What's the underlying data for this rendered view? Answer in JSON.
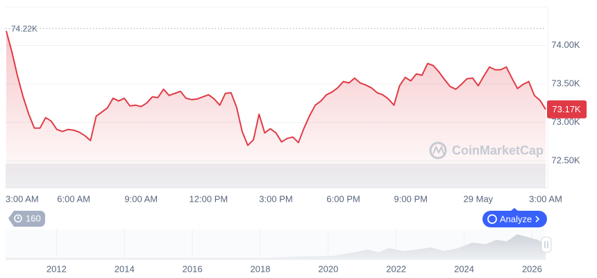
{
  "chart_data": {
    "type": "line",
    "color": "#e03a45",
    "x": [
      0,
      0.25,
      0.5,
      0.75,
      1,
      1.25,
      1.5,
      1.75,
      2,
      2.25,
      2.5,
      2.75,
      3,
      3.25,
      3.5,
      3.75,
      4,
      4.25,
      4.5,
      4.75,
      5,
      5.25,
      5.5,
      5.75,
      6,
      6.25,
      6.5,
      6.75,
      7,
      7.25,
      7.5,
      7.75,
      8,
      8.25,
      8.5,
      8.75,
      9,
      9.25,
      9.5,
      9.75,
      10,
      10.25,
      10.5,
      10.75,
      11,
      11.25,
      11.5,
      11.75,
      12,
      12.25,
      12.5,
      12.75,
      13,
      13.25,
      13.5,
      13.75,
      14,
      14.25,
      14.5,
      14.75,
      15,
      15.25,
      15.5,
      15.75,
      16,
      16.25,
      16.5,
      16.75,
      17,
      17.25,
      17.5,
      17.75,
      18,
      18.25,
      18.5,
      18.75,
      19,
      19.25,
      19.5,
      19.75,
      20,
      20.25,
      20.5,
      20.75,
      21,
      21.25,
      21.5,
      21.75,
      22,
      22.25,
      22.5,
      22.75,
      23,
      23.25,
      23.5,
      23.75,
      24
    ],
    "values": [
      74189,
      73919,
      73604,
      73333,
      73108,
      72928,
      72928,
      73063,
      73018,
      72910,
      72883,
      72910,
      72901,
      72874,
      72829,
      72766,
      73081,
      73135,
      73189,
      73315,
      73279,
      73315,
      73216,
      73225,
      73207,
      73252,
      73333,
      73324,
      73432,
      73351,
      73378,
      73405,
      73315,
      73297,
      73306,
      73333,
      73360,
      73306,
      73225,
      73378,
      73387,
      73198,
      72883,
      72703,
      72775,
      73108,
      72865,
      72919,
      72865,
      72748,
      72793,
      72811,
      72739,
      72928,
      73090,
      73225,
      73279,
      73360,
      73396,
      73450,
      73532,
      73514,
      73577,
      73514,
      73486,
      73450,
      73387,
      73360,
      73306,
      73225,
      73477,
      73586,
      73541,
      73631,
      73613,
      73766,
      73739,
      73658,
      73559,
      73468,
      73432,
      73495,
      73568,
      73577,
      73477,
      73604,
      73721,
      73685,
      73685,
      73721,
      73577,
      73441,
      73495,
      73532,
      73351,
      73288,
      73170
    ],
    "xlim": [
      0,
      24
    ],
    "xticks": [
      {
        "value": 0,
        "label": "3:00 AM"
      },
      {
        "value": 3,
        "label": "6:00 AM"
      },
      {
        "value": 6,
        "label": "9:00 AM"
      },
      {
        "value": 9,
        "label": "12:00 PM"
      },
      {
        "value": 12,
        "label": "3:00 PM"
      },
      {
        "value": 15,
        "label": "6:00 PM"
      },
      {
        "value": 18,
        "label": "9:00 PM"
      },
      {
        "value": 21,
        "label": "29 May"
      },
      {
        "value": 24,
        "label": "3:00 AM"
      }
    ],
    "ylim": [
      72160,
      74500
    ],
    "yticks": [
      {
        "value": 72500,
        "label": "72.50K"
      },
      {
        "value": 73000,
        "label": "73.00K"
      },
      {
        "value": 73500,
        "label": "73.50K"
      },
      {
        "value": 74000,
        "label": "74.00K"
      }
    ],
    "high": {
      "value": 74220,
      "label": "74.22K"
    },
    "current": {
      "value": 73170,
      "label": "73.17K"
    },
    "grid": true,
    "overview": {
      "xlim": [
        2010.5,
        2026.4
      ],
      "xticks": [
        2012,
        2014,
        2016,
        2018,
        2020,
        2022,
        2024,
        2026
      ]
    }
  },
  "ui": {
    "watermark": "CoinMarketCap",
    "range_badge": "160",
    "analyze_button": "Analyze"
  }
}
